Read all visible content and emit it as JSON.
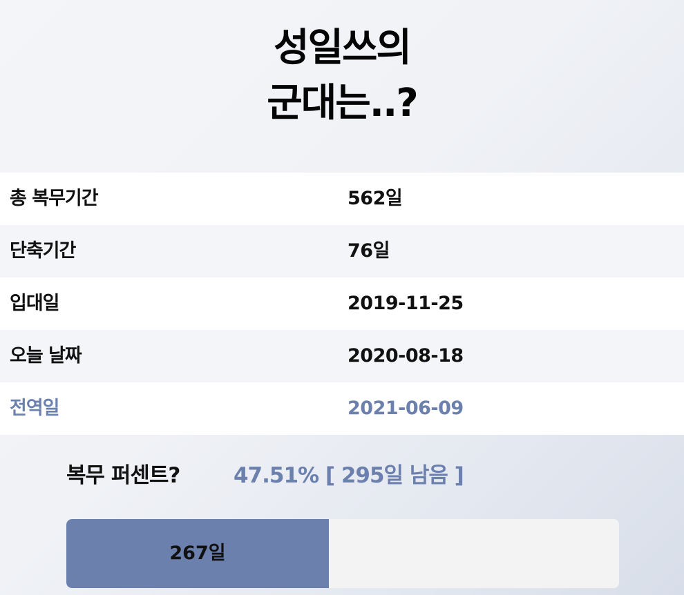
{
  "title": {
    "line1": "성일쓰의",
    "line2": "군대는..?"
  },
  "info_rows": [
    {
      "label": "총 복무기간",
      "value": "562일"
    },
    {
      "label": "단축기간",
      "value": "76일"
    },
    {
      "label": "입대일",
      "value": "2019-11-25"
    },
    {
      "label": "오늘 날짜",
      "value": "2020-08-18"
    },
    {
      "label": "전역일",
      "value": "2021-06-09"
    }
  ],
  "progress": {
    "label": "복무 퍼센트?",
    "summary": "47.51% [ 295일 남음 ]",
    "served_label": "267일",
    "fraction": 0.4751
  },
  "colors": {
    "accent": "#6c80ae",
    "track": "#f3f3f4",
    "text": "#111111"
  }
}
